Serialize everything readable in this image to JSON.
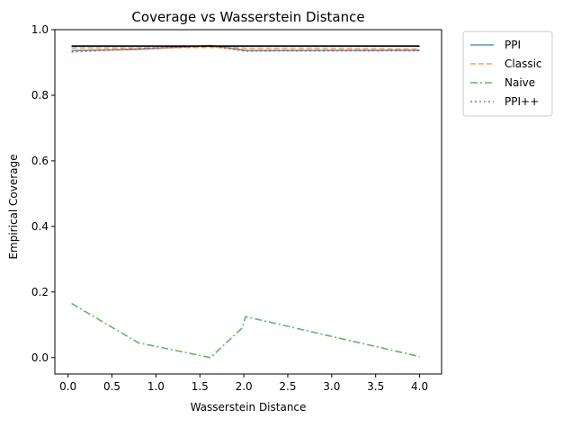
{
  "chart_data": {
    "type": "line",
    "title": "Coverage vs Wasserstein Distance",
    "xlabel": "Wasserstein Distance",
    "ylabel": "Empirical Coverage",
    "xlim": [
      -0.15,
      4.25
    ],
    "ylim": [
      -0.05,
      1.0
    ],
    "xticks": [
      "0.0",
      "0.5",
      "1.0",
      "1.5",
      "2.0",
      "2.5",
      "3.0",
      "3.5",
      "4.0"
    ],
    "xtick_values": [
      0.0,
      0.5,
      1.0,
      1.5,
      2.0,
      2.5,
      3.0,
      3.5,
      4.0
    ],
    "yticks": [
      "0.0",
      "0.2",
      "0.4",
      "0.6",
      "0.8",
      "1.0"
    ],
    "ytick_values": [
      0.0,
      0.2,
      0.4,
      0.6,
      0.8,
      1.0
    ],
    "grid": false,
    "legend_placement": "outside-right-top",
    "x": [
      0.04,
      0.8,
      1.62,
      1.98,
      2.02,
      4.0
    ],
    "reference_line": {
      "value": 0.95,
      "x_range": [
        0.04,
        4.0
      ],
      "color": "#000000"
    },
    "series": [
      {
        "name": "PPI",
        "values": [
          0.936,
          0.94,
          0.952,
          0.938,
          0.936,
          0.937
        ],
        "color": "#1f77b4",
        "style": "solid"
      },
      {
        "name": "Classic",
        "values": [
          0.944,
          0.944,
          0.946,
          0.944,
          0.943,
          0.941
        ],
        "color": "#ff7f0e",
        "style": "dashed"
      },
      {
        "name": "Naive",
        "values": [
          0.165,
          0.045,
          0.0,
          0.09,
          0.125,
          0.003
        ],
        "color": "#2ca02c",
        "style": "dashdot"
      },
      {
        "name": "PPI++",
        "values": [
          0.932,
          0.942,
          0.95,
          0.936,
          0.935,
          0.936
        ],
        "color": "#d62728",
        "style": "dotted"
      }
    ]
  }
}
